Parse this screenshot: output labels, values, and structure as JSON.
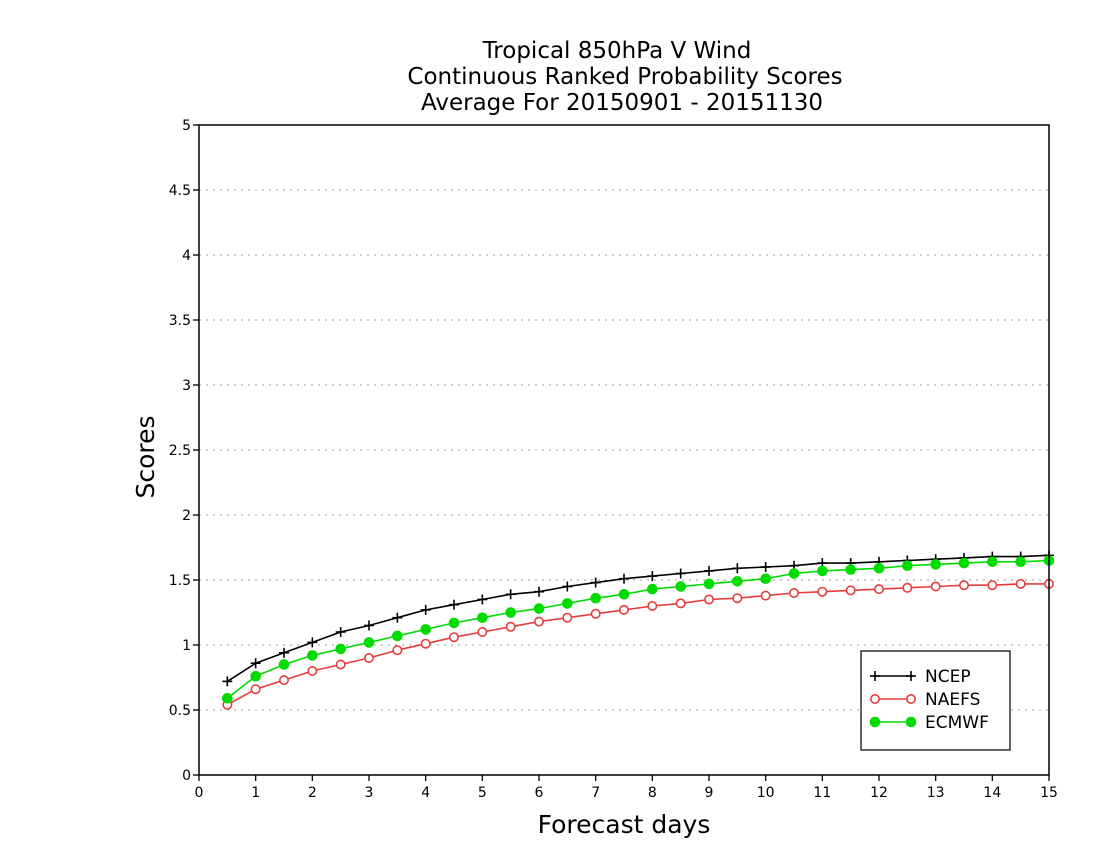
{
  "chart_data": {
    "type": "line",
    "title": [
      "Tropical 850hPa V Wind",
      "Continuous Ranked Probability Scores",
      "Average For 20150901 - 20151130"
    ],
    "xlabel": "Forecast days",
    "ylabel": "Scores",
    "xlim": [
      0,
      15
    ],
    "ylim": [
      0,
      5
    ],
    "x_ticks": [
      "0",
      "1",
      "2",
      "3",
      "4",
      "5",
      "6",
      "7",
      "8",
      "9",
      "10",
      "11",
      "12",
      "13",
      "14",
      "15"
    ],
    "y_ticks": [
      "0",
      "0.5",
      "1",
      "1.5",
      "2",
      "2.5",
      "3",
      "3.5",
      "4",
      "4.5",
      "5"
    ],
    "grid": "horizontal dotted",
    "legend_position": "bottom-right",
    "x": [
      0.5,
      1,
      1.5,
      2,
      2.5,
      3,
      3.5,
      4,
      4.5,
      5,
      5.5,
      6,
      6.5,
      7,
      7.5,
      8,
      8.5,
      9,
      9.5,
      10,
      10.5,
      11,
      11.5,
      12,
      12.5,
      13,
      13.5,
      14,
      14.5,
      15
    ],
    "series": [
      {
        "name": "NCEP",
        "color": "#000000",
        "marker": "plus",
        "values": [
          0.72,
          0.86,
          0.94,
          1.02,
          1.1,
          1.15,
          1.21,
          1.27,
          1.31,
          1.35,
          1.39,
          1.41,
          1.45,
          1.48,
          1.51,
          1.53,
          1.55,
          1.57,
          1.59,
          1.6,
          1.61,
          1.63,
          1.63,
          1.64,
          1.65,
          1.66,
          1.67,
          1.68,
          1.68,
          1.69
        ]
      },
      {
        "name": "NAEFS",
        "color": "#e83c3c",
        "marker": "open-circle",
        "values": [
          0.54,
          0.66,
          0.73,
          0.8,
          0.85,
          0.9,
          0.96,
          1.01,
          1.06,
          1.1,
          1.14,
          1.18,
          1.21,
          1.24,
          1.27,
          1.3,
          1.32,
          1.35,
          1.36,
          1.38,
          1.4,
          1.41,
          1.42,
          1.43,
          1.44,
          1.45,
          1.46,
          1.46,
          1.47,
          1.47
        ]
      },
      {
        "name": "ECMWF",
        "color": "#00dc00",
        "marker": "filled-circle",
        "values": [
          0.59,
          0.76,
          0.85,
          0.92,
          0.97,
          1.02,
          1.07,
          1.12,
          1.17,
          1.21,
          1.25,
          1.28,
          1.32,
          1.36,
          1.39,
          1.43,
          1.45,
          1.47,
          1.49,
          1.51,
          1.55,
          1.57,
          1.58,
          1.59,
          1.61,
          1.62,
          1.63,
          1.64,
          1.64,
          1.65
        ]
      }
    ]
  }
}
